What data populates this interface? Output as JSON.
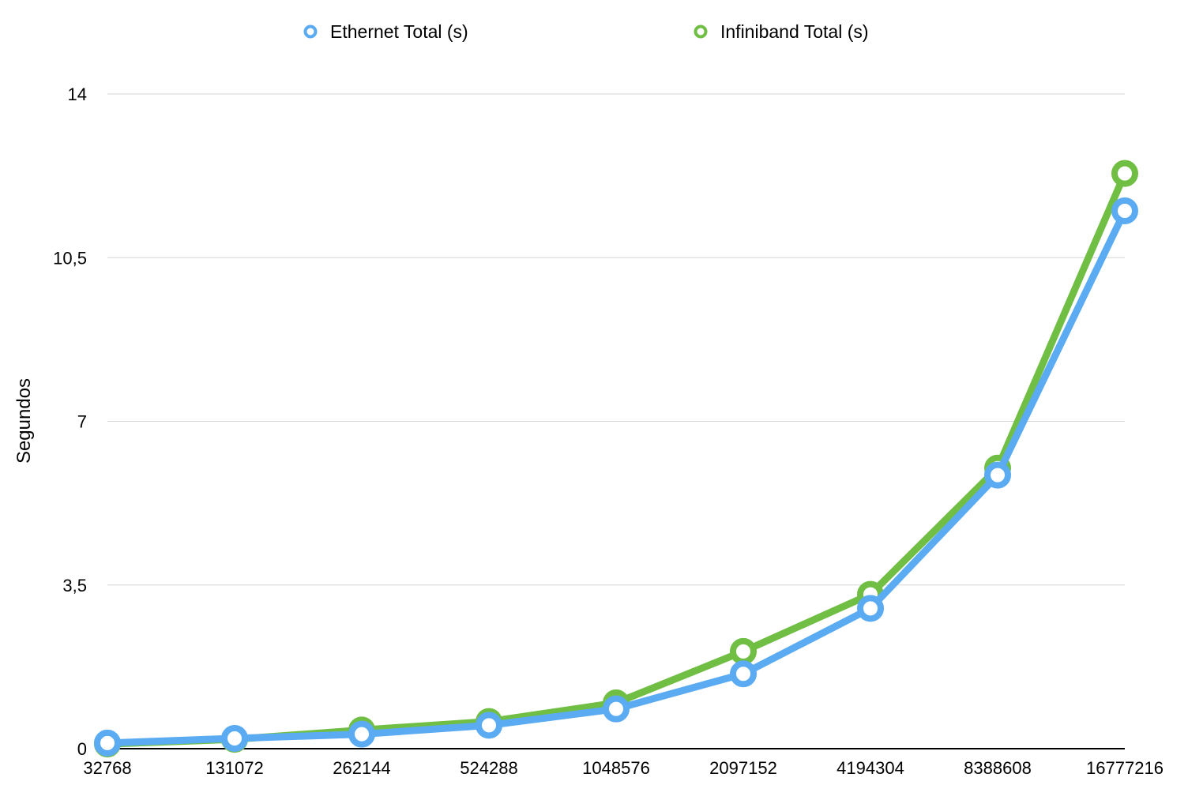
{
  "chart_data": {
    "type": "line",
    "title": "",
    "xlabel": "",
    "ylabel": "Segundos",
    "categories": [
      "32768",
      "131072",
      "262144",
      "524288",
      "1048576",
      "2097152",
      "4194304",
      "8388608",
      "16777216"
    ],
    "y_ticks": [
      "0",
      "3,5",
      "7",
      "10,5",
      "14"
    ],
    "y_tick_values": [
      0,
      3.5,
      7,
      10.5,
      14
    ],
    "ylim": [
      0,
      14
    ],
    "grid": true,
    "legend_position": "top",
    "series": [
      {
        "name": "Ethernet Total (s)",
        "color": "#5aabf2",
        "values": [
          0.12,
          0.22,
          0.31,
          0.5,
          0.85,
          1.6,
          3.0,
          5.85,
          11.5
        ]
      },
      {
        "name": "Infiniband Total (s)",
        "color": "#70bf44",
        "values": [
          0.1,
          0.2,
          0.4,
          0.58,
          0.98,
          2.08,
          3.3,
          6.0,
          12.3
        ]
      }
    ]
  }
}
